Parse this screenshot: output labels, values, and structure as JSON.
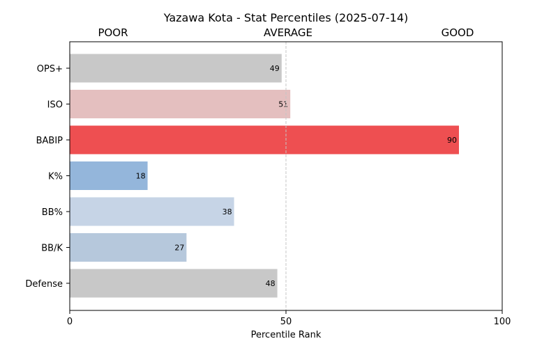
{
  "chart_data": {
    "type": "bar",
    "orientation": "horizontal",
    "title": "Yazawa Kota - Stat Percentiles (2025-07-14)",
    "xlabel": "Percentile Rank",
    "ylabel": "",
    "xlim": [
      0,
      100
    ],
    "xticks": [
      0,
      50,
      100
    ],
    "reference_line": 50,
    "band_labels": [
      "POOR",
      "AVERAGE",
      "GOOD"
    ],
    "categories": [
      "OPS+",
      "ISO",
      "BABIP",
      "K%",
      "BB%",
      "BB/K",
      "Defense"
    ],
    "values": [
      49,
      51,
      90,
      18,
      38,
      27,
      48
    ],
    "bar_colors": [
      "#c8c8c8",
      "#e4bfbf",
      "#ee4f51",
      "#94b6db",
      "#c6d4e6",
      "#b6c8dc",
      "#c8c8c8"
    ],
    "grid": false,
    "legend": "none"
  }
}
